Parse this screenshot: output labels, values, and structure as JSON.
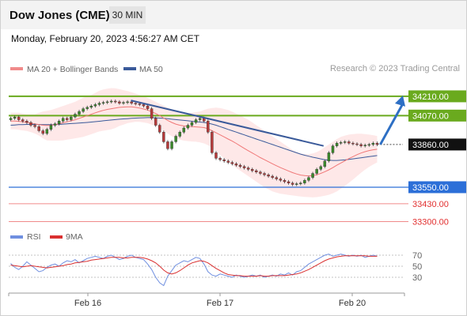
{
  "header": {
    "title": "Dow Jones (CME)",
    "timeframe": "30 MIN"
  },
  "datetime": "Monday, February 20, 2023 4:56:27 AM CET",
  "copyright": "Research © 2023 Trading Central",
  "colors": {
    "resistance": "#6aaa1e",
    "support": "#2c6fd8",
    "target_support": "#f08a8a",
    "current_price": "#111111",
    "bollinger_fill": "#fde0e0",
    "ma20": "#f07878",
    "ma50": "#3a5a9a",
    "trendline": "#3a5a9a",
    "arrow": "#2d6fc4",
    "candle_up": "#3a8a2a",
    "candle_down": "#b83a3a",
    "rsi": "#6f8fe0",
    "rsi_ma": "#d93030",
    "support_label_text": "#e23030"
  },
  "chart_data": [
    {
      "type": "candlestick",
      "title": "",
      "legend": [
        {
          "name": "MA 20 + Bollinger Bands",
          "color": "#f08a8a"
        },
        {
          "name": "MA 50",
          "color": "#3a5a9a"
        }
      ],
      "legend_position": "top-left",
      "x_tick_labels": [
        "Feb 16",
        "Feb 17",
        "Feb 20"
      ],
      "ylim": [
        33240,
        34330
      ],
      "grid": false,
      "levels": [
        {
          "value": 34210.0,
          "label": "34210.00",
          "kind": "resistance"
        },
        {
          "value": 34070.0,
          "label": "34070.00",
          "kind": "resistance"
        },
        {
          "value": 33860.0,
          "label": "33860.00",
          "kind": "current_price"
        },
        {
          "value": 33550.0,
          "label": "33550.00",
          "kind": "support"
        },
        {
          "value": 33430.0,
          "label": "33430.00",
          "kind": "target_support"
        },
        {
          "value": 33300.0,
          "label": "33300.00",
          "kind": "target_support"
        }
      ],
      "forecast_arrow": {
        "from": 33860,
        "to": 34210
      },
      "trendline": [
        [
          0.33,
          34180
        ],
        [
          0.85,
          33850
        ]
      ],
      "close": [
        34050,
        34060,
        34040,
        34030,
        34020,
        34000,
        33990,
        33960,
        33940,
        33970,
        34000,
        34010,
        34030,
        34050,
        34040,
        34060,
        34080,
        34100,
        34120,
        34130,
        34140,
        34150,
        34160,
        34165,
        34170,
        34175,
        34170,
        34160,
        34165,
        34170,
        34160,
        34155,
        34150,
        34140,
        34120,
        34050,
        34000,
        33950,
        33880,
        33830,
        33880,
        33920,
        33950,
        33980,
        34000,
        34020,
        34040,
        34050,
        34030,
        33950,
        33800,
        33760,
        33750,
        33740,
        33730,
        33720,
        33710,
        33700,
        33690,
        33680,
        33670,
        33660,
        33650,
        33640,
        33630,
        33620,
        33610,
        33600,
        33590,
        33580,
        33570,
        33575,
        33580,
        33600,
        33620,
        33650,
        33680,
        33700,
        33740,
        33800,
        33850,
        33870,
        33875,
        33880,
        33870,
        33865,
        33860,
        33850,
        33855,
        33860,
        33870,
        33860
      ],
      "open": [
        34040,
        34050,
        34060,
        34040,
        34030,
        34020,
        34000,
        33990,
        33960,
        33940,
        33970,
        34000,
        34010,
        34030,
        34050,
        34040,
        34060,
        34080,
        34100,
        34120,
        34130,
        34140,
        34150,
        34160,
        34165,
        34170,
        34175,
        34170,
        34160,
        34165,
        34170,
        34160,
        34155,
        34150,
        34140,
        34120,
        34050,
        34000,
        33950,
        33880,
        33830,
        33880,
        33920,
        33950,
        33980,
        34000,
        34020,
        34040,
        34050,
        34030,
        33950,
        33800,
        33760,
        33750,
        33740,
        33730,
        33720,
        33710,
        33700,
        33690,
        33680,
        33670,
        33660,
        33650,
        33640,
        33630,
        33620,
        33610,
        33600,
        33590,
        33580,
        33570,
        33575,
        33580,
        33600,
        33620,
        33650,
        33680,
        33700,
        33740,
        33800,
        33850,
        33870,
        33875,
        33880,
        33870,
        33865,
        33860,
        33850,
        33855,
        33860,
        33870
      ],
      "ma20": [
        34030,
        34030,
        34028,
        34025,
        34020,
        34015,
        34010,
        34005,
        34000,
        33998,
        34000,
        34005,
        34010,
        34018,
        34025,
        34032,
        34040,
        34050,
        34060,
        34070,
        34080,
        34090,
        34100,
        34108,
        34115,
        34120,
        34125,
        34130,
        34132,
        34133,
        34133,
        34130,
        34125,
        34118,
        34110,
        34098,
        34085,
        34070,
        34052,
        34035,
        34020,
        34008,
        34000,
        33995,
        33992,
        33990,
        33988,
        33986,
        33983,
        33975,
        33960,
        33945,
        33930,
        33915,
        33900,
        33885,
        33868,
        33850,
        33832,
        33815,
        33798,
        33782,
        33765,
        33750,
        33735,
        33720,
        33706,
        33692,
        33680,
        33668,
        33656,
        33646,
        33638,
        33634,
        33632,
        33634,
        33640,
        33650,
        33662,
        33676,
        33692,
        33710,
        33726,
        33742,
        33758,
        33772,
        33786,
        33798,
        33808,
        33816,
        33822,
        33826
      ],
      "bb_upper": [
        34090,
        34090,
        34090,
        34085,
        34080,
        34080,
        34080,
        34090,
        34100,
        34105,
        34110,
        34120,
        34130,
        34140,
        34150,
        34160,
        34170,
        34185,
        34200,
        34210,
        34220,
        34235,
        34250,
        34260,
        34265,
        34270,
        34268,
        34262,
        34255,
        34248,
        34240,
        34230,
        34220,
        34210,
        34198,
        34185,
        34170,
        34155,
        34142,
        34128,
        34115,
        34105,
        34096,
        34090,
        34088,
        34090,
        34095,
        34100,
        34110,
        34120,
        34125,
        34128,
        34125,
        34118,
        34110,
        34098,
        34085,
        34070,
        34055,
        34040,
        34020,
        34000,
        33980,
        33960,
        33940,
        33920,
        33900,
        33880,
        33860,
        33840,
        33820,
        33805,
        33795,
        33790,
        33790,
        33795,
        33805,
        33820,
        33840,
        33860,
        33880,
        33900,
        33915,
        33925,
        33932,
        33936,
        33938,
        33938,
        33936,
        33932,
        33928,
        33922
      ],
      "bb_lower": [
        33970,
        33970,
        33966,
        33962,
        33958,
        33950,
        33940,
        33925,
        33905,
        33890,
        33888,
        33888,
        33888,
        33890,
        33895,
        33900,
        33905,
        33910,
        33915,
        33925,
        33935,
        33945,
        33955,
        33960,
        33965,
        33970,
        33980,
        33995,
        34005,
        34015,
        34020,
        34025,
        34025,
        34020,
        34015,
        34005,
        33995,
        33980,
        33960,
        33940,
        33920,
        33905,
        33895,
        33888,
        33885,
        33882,
        33880,
        33875,
        33868,
        33855,
        33835,
        33810,
        33785,
        33760,
        33735,
        33712,
        33690,
        33670,
        33650,
        33630,
        33610,
        33590,
        33570,
        33550,
        33535,
        33520,
        33510,
        33502,
        33498,
        33494,
        33490,
        33486,
        33482,
        33480,
        33478,
        33476,
        33478,
        33482,
        33488,
        33495,
        33505,
        33520,
        33540,
        33560,
        33582,
        33605,
        33630,
        33655,
        33678,
        33698,
        33715,
        33730
      ],
      "ma50": [
        34000,
        34002,
        34004,
        34005,
        34006,
        34006,
        34006,
        34006,
        34005,
        34004,
        34004,
        34005,
        34006,
        34008,
        34010,
        34012,
        34014,
        34016,
        34018,
        34020,
        34023,
        34026,
        34029,
        34032,
        34035,
        34038,
        34041,
        34044,
        34046,
        34048,
        34050,
        34052,
        34053,
        34054,
        34055,
        34055,
        34054,
        34052,
        34050,
        34047,
        34044,
        34041,
        34038,
        34035,
        34032,
        34029,
        34026,
        34023,
        34020,
        34015,
        34008,
        34000,
        33990,
        33980,
        33970,
        33960,
        33950,
        33940,
        33930,
        33920,
        33910,
        33900,
        33890,
        33880,
        33870,
        33860,
        33850,
        33840,
        33830,
        33820,
        33810,
        33800,
        33790,
        33782,
        33775,
        33768,
        33762,
        33756,
        33750,
        33746,
        33744,
        33744,
        33746,
        33748,
        33752,
        33756,
        33760,
        33764,
        33768,
        33772,
        33776,
        33780
      ]
    },
    {
      "type": "line",
      "title": "",
      "legend": [
        {
          "name": "RSI",
          "color": "#6f8fe0"
        },
        {
          "name": "9MA",
          "color": "#d93030"
        }
      ],
      "legend_position": "top-left",
      "y_tick_labels": [
        "70",
        "50",
        "30"
      ],
      "ylim": [
        10,
        80
      ],
      "series": [
        {
          "name": "RSI",
          "values": [
            55,
            48,
            44,
            50,
            58,
            52,
            46,
            40,
            42,
            48,
            52,
            54,
            50,
            56,
            60,
            58,
            62,
            56,
            60,
            64,
            66,
            68,
            66,
            64,
            68,
            70,
            66,
            62,
            64,
            68,
            70,
            66,
            64,
            62,
            54,
            44,
            30,
            20,
            15,
            32,
            42,
            52,
            56,
            60,
            58,
            62,
            66,
            64,
            54,
            40,
            34,
            32,
            36,
            34,
            32,
            30,
            34,
            32,
            30,
            32,
            34,
            32,
            34,
            30,
            32,
            34,
            32,
            36,
            34,
            38,
            34,
            40,
            42,
            48,
            54,
            58,
            62,
            66,
            70,
            72,
            68,
            70,
            72,
            70,
            68,
            70,
            68,
            70,
            66,
            68,
            70,
            68
          ]
        },
        {
          "name": "9MA",
          "values": [
            52,
            51,
            50,
            49,
            50,
            51,
            50,
            49,
            48,
            47,
            48,
            49,
            50,
            51,
            53,
            54,
            56,
            57,
            58,
            59,
            61,
            62,
            63,
            64,
            65,
            66,
            66,
            66,
            65,
            65,
            66,
            66,
            66,
            65,
            63,
            60,
            56,
            50,
            43,
            38,
            36,
            38,
            42,
            47,
            52,
            56,
            58,
            60,
            59,
            56,
            51,
            46,
            42,
            38,
            35,
            34,
            33,
            33,
            32,
            32,
            32,
            32,
            33,
            32,
            32,
            33,
            33,
            33,
            33,
            34,
            35,
            36,
            38,
            41,
            44,
            48,
            52,
            56,
            60,
            63,
            65,
            67,
            68,
            69,
            69,
            69,
            69,
            69,
            69,
            68,
            68,
            68
          ]
        }
      ]
    }
  ]
}
